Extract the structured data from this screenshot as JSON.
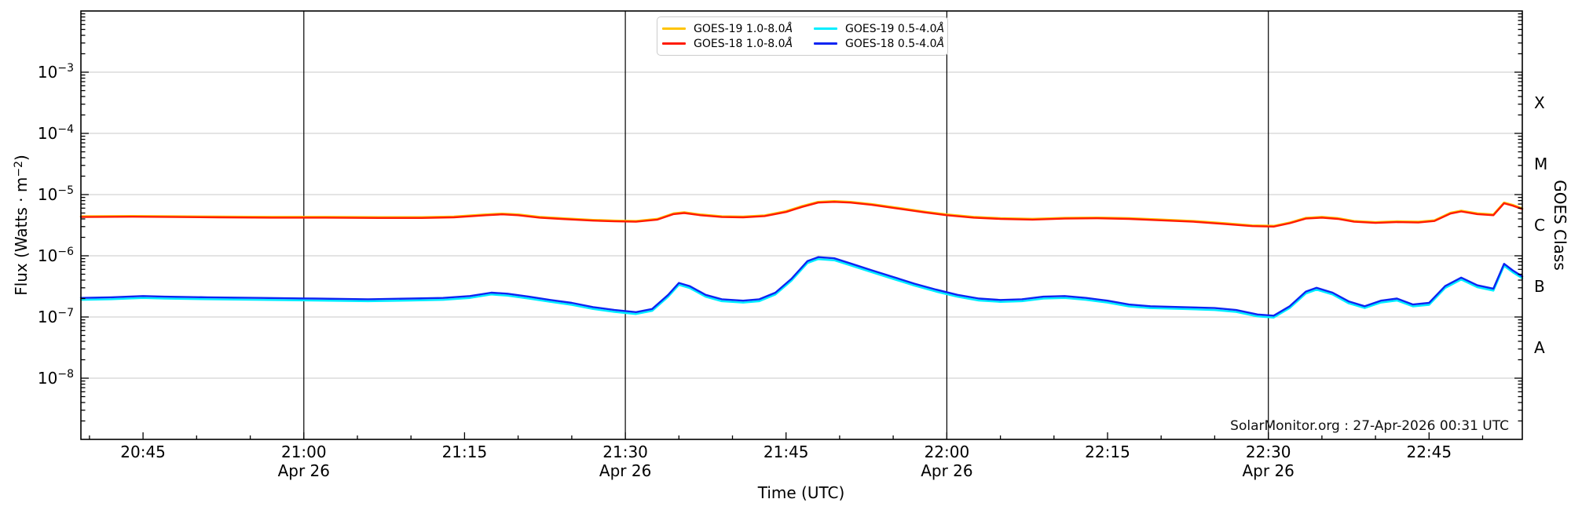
{
  "axes": {
    "y_label_prefix": "Flux (Watts · m",
    "y_label_sup": "−2",
    "y_label_suffix": ")",
    "x_label": "Time (UTC)",
    "right_label": "GOES Class"
  },
  "footer": {
    "credit": "SolarMonitor.org : 27-Apr-2026 00:31 UTC"
  },
  "legend": {
    "items": [
      {
        "id": "goes-19-long",
        "label": "GOES-19 1.0-8.0",
        "angstrom": "Å",
        "color": "#ffc400"
      },
      {
        "id": "goes-18-long",
        "label": "GOES-18 1.0-8.0",
        "angstrom": "Å",
        "color": "#ff1a00"
      },
      {
        "id": "goes-19-short",
        "label": "GOES-19 0.5-4.0",
        "angstrom": "Å",
        "color": "#00eeff"
      },
      {
        "id": "goes-18-short",
        "label": "GOES-18 0.5-4.0",
        "angstrom": "Å",
        "color": "#0d24f2"
      }
    ]
  },
  "style": {
    "grid_color": "#c8c8c8",
    "spine_color": "#000000",
    "dateline_color": "#000000",
    "text_color": "#000000"
  },
  "chart_data": {
    "type": "line",
    "title": "",
    "xlabel": "Time (UTC)",
    "ylabel": "Flux (Watts · m^-2)",
    "x_unit": "minute of day, 26-Apr-2026 UTC",
    "xlim": [
      1239.2,
      1373.7
    ],
    "ylim": [
      1e-09,
      0.01
    ],
    "yscale": "log",
    "grid": "horizontal decades",
    "legend_position": "top center",
    "x_major_ticks": [
      {
        "t": 1245,
        "label": "20:45"
      },
      {
        "t": 1260,
        "label": "21:00",
        "date": true
      },
      {
        "t": 1275,
        "label": "21:15"
      },
      {
        "t": 1290,
        "label": "21:30",
        "date": true
      },
      {
        "t": 1305,
        "label": "21:45"
      },
      {
        "t": 1320,
        "label": "22:00",
        "date": true
      },
      {
        "t": 1335,
        "label": "22:15"
      },
      {
        "t": 1350,
        "label": "22:30",
        "date": true
      },
      {
        "t": 1365,
        "label": "22:45"
      }
    ],
    "x_minor_step_min": 5,
    "date_label": "Apr 26",
    "y_labeled_exponents": [
      -3,
      -4,
      -5,
      -6,
      -7,
      -8
    ],
    "goes_classes": [
      {
        "label": "X",
        "log_center": -3.5
      },
      {
        "label": "M",
        "log_center": -4.5
      },
      {
        "label": "C",
        "log_center": -5.5
      },
      {
        "label": "B",
        "log_center": -6.5
      },
      {
        "label": "A",
        "log_center": -7.5
      }
    ],
    "series": [
      {
        "name": "GOES-19 1.0-8.0Å",
        "id": "goes-19-long",
        "color": "#ffc400",
        "width": 2.5,
        "points": [
          [
            1239.2,
            4.43e-06
          ],
          [
            1244,
            4.48e-06
          ],
          [
            1248,
            4.43e-06
          ],
          [
            1252,
            4.38e-06
          ],
          [
            1257,
            4.33e-06
          ],
          [
            1262,
            4.33e-06
          ],
          [
            1267,
            4.27e-06
          ],
          [
            1271,
            4.27e-06
          ],
          [
            1274,
            4.38e-06
          ],
          [
            1277,
            4.74e-06
          ],
          [
            1278.5,
            4.89e-06
          ],
          [
            1280,
            4.74e-06
          ],
          [
            1282,
            4.33e-06
          ],
          [
            1284,
            4.12e-06
          ],
          [
            1287,
            3.86e-06
          ],
          [
            1289,
            3.76e-06
          ],
          [
            1291,
            3.71e-06
          ],
          [
            1293,
            4.02e-06
          ],
          [
            1294.5,
            4.94e-06
          ],
          [
            1295.5,
            5.15e-06
          ],
          [
            1297,
            4.74e-06
          ],
          [
            1299,
            4.43e-06
          ],
          [
            1301,
            4.38e-06
          ],
          [
            1303,
            4.58e-06
          ],
          [
            1305,
            5.36e-06
          ],
          [
            1306.5,
            6.49e-06
          ],
          [
            1308,
            7.62e-06
          ],
          [
            1309.5,
            7.83e-06
          ],
          [
            1311,
            7.62e-06
          ],
          [
            1313,
            7e-06
          ],
          [
            1315.5,
            6.08e-06
          ],
          [
            1318,
            5.25e-06
          ],
          [
            1320,
            4.74e-06
          ],
          [
            1322.5,
            4.33e-06
          ],
          [
            1325,
            4.12e-06
          ],
          [
            1328,
            4.02e-06
          ],
          [
            1331,
            4.17e-06
          ],
          [
            1334,
            4.22e-06
          ],
          [
            1337,
            4.12e-06
          ],
          [
            1340,
            3.91e-06
          ],
          [
            1343,
            3.71e-06
          ],
          [
            1346,
            3.4e-06
          ],
          [
            1348.5,
            3.14e-06
          ],
          [
            1350.5,
            3.09e-06
          ],
          [
            1352,
            3.5e-06
          ],
          [
            1353.5,
            4.17e-06
          ],
          [
            1355,
            4.33e-06
          ],
          [
            1356.5,
            4.12e-06
          ],
          [
            1358,
            3.71e-06
          ],
          [
            1360,
            3.55e-06
          ],
          [
            1362,
            3.66e-06
          ],
          [
            1364,
            3.61e-06
          ],
          [
            1365.5,
            3.81e-06
          ],
          [
            1367,
            5.05e-06
          ],
          [
            1368,
            5.46e-06
          ],
          [
            1369.5,
            4.94e-06
          ],
          [
            1371,
            4.74e-06
          ],
          [
            1372,
            7.42e-06
          ],
          [
            1372.8,
            6.8e-06
          ],
          [
            1373.7,
            5.97e-06
          ]
        ]
      },
      {
        "name": "GOES-18 1.0-8.0Å",
        "id": "goes-18-long",
        "color": "#ff1a00",
        "width": 2.4,
        "points": [
          [
            1239.2,
            4.3e-06
          ],
          [
            1244,
            4.35e-06
          ],
          [
            1248,
            4.3e-06
          ],
          [
            1252,
            4.25e-06
          ],
          [
            1257,
            4.2e-06
          ],
          [
            1262,
            4.2e-06
          ],
          [
            1267,
            4.15e-06
          ],
          [
            1271,
            4.15e-06
          ],
          [
            1274,
            4.25e-06
          ],
          [
            1277,
            4.6e-06
          ],
          [
            1278.5,
            4.75e-06
          ],
          [
            1280,
            4.6e-06
          ],
          [
            1282,
            4.2e-06
          ],
          [
            1284,
            4e-06
          ],
          [
            1287,
            3.75e-06
          ],
          [
            1289,
            3.65e-06
          ],
          [
            1291,
            3.6e-06
          ],
          [
            1293,
            3.9e-06
          ],
          [
            1294.5,
            4.8e-06
          ],
          [
            1295.5,
            5e-06
          ],
          [
            1297,
            4.6e-06
          ],
          [
            1299,
            4.3e-06
          ],
          [
            1301,
            4.25e-06
          ],
          [
            1303,
            4.45e-06
          ],
          [
            1305,
            5.2e-06
          ],
          [
            1306.5,
            6.3e-06
          ],
          [
            1308,
            7.4e-06
          ],
          [
            1309.5,
            7.6e-06
          ],
          [
            1311,
            7.4e-06
          ],
          [
            1313,
            6.8e-06
          ],
          [
            1315.5,
            5.9e-06
          ],
          [
            1318,
            5.1e-06
          ],
          [
            1320,
            4.6e-06
          ],
          [
            1322.5,
            4.2e-06
          ],
          [
            1325,
            4e-06
          ],
          [
            1328,
            3.9e-06
          ],
          [
            1331,
            4.05e-06
          ],
          [
            1334,
            4.1e-06
          ],
          [
            1337,
            4e-06
          ],
          [
            1340,
            3.8e-06
          ],
          [
            1343,
            3.6e-06
          ],
          [
            1346,
            3.3e-06
          ],
          [
            1348.5,
            3.05e-06
          ],
          [
            1350.5,
            3e-06
          ],
          [
            1352,
            3.4e-06
          ],
          [
            1353.5,
            4.05e-06
          ],
          [
            1355,
            4.2e-06
          ],
          [
            1356.5,
            4e-06
          ],
          [
            1358,
            3.6e-06
          ],
          [
            1360,
            3.45e-06
          ],
          [
            1362,
            3.55e-06
          ],
          [
            1364,
            3.5e-06
          ],
          [
            1365.5,
            3.7e-06
          ],
          [
            1367,
            4.9e-06
          ],
          [
            1368,
            5.3e-06
          ],
          [
            1369.5,
            4.8e-06
          ],
          [
            1371,
            4.6e-06
          ],
          [
            1372,
            7.2e-06
          ],
          [
            1372.8,
            6.6e-06
          ],
          [
            1373.7,
            5.8e-06
          ]
        ]
      },
      {
        "name": "GOES-19 0.5-4.0Å",
        "id": "goes-19-short",
        "color": "#00eeff",
        "width": 2.5,
        "points": [
          [
            1239.2,
            1.91e-07
          ],
          [
            1242,
            1.95e-07
          ],
          [
            1245,
            2.05e-07
          ],
          [
            1247,
            2e-07
          ],
          [
            1251,
            1.95e-07
          ],
          [
            1256,
            1.91e-07
          ],
          [
            1261,
            1.86e-07
          ],
          [
            1266,
            1.81e-07
          ],
          [
            1270,
            1.86e-07
          ],
          [
            1273,
            1.91e-07
          ],
          [
            1275.5,
            2.05e-07
          ],
          [
            1277.5,
            2.33e-07
          ],
          [
            1279,
            2.23e-07
          ],
          [
            1281,
            2e-07
          ],
          [
            1283,
            1.77e-07
          ],
          [
            1285,
            1.58e-07
          ],
          [
            1287,
            1.35e-07
          ],
          [
            1289,
            1.21e-07
          ],
          [
            1291,
            1.12e-07
          ],
          [
            1292.5,
            1.26e-07
          ],
          [
            1294,
            2.14e-07
          ],
          [
            1295,
            3.35e-07
          ],
          [
            1296,
            2.98e-07
          ],
          [
            1297.5,
            2.14e-07
          ],
          [
            1299,
            1.81e-07
          ],
          [
            1301,
            1.72e-07
          ],
          [
            1302.5,
            1.81e-07
          ],
          [
            1304,
            2.33e-07
          ],
          [
            1305.5,
            3.91e-07
          ],
          [
            1307,
            7.63e-07
          ],
          [
            1308,
            8.84e-07
          ],
          [
            1309.5,
            8.46e-07
          ],
          [
            1311,
            6.98e-07
          ],
          [
            1313,
            5.39e-07
          ],
          [
            1315,
            4.19e-07
          ],
          [
            1317,
            3.26e-07
          ],
          [
            1319,
            2.6e-07
          ],
          [
            1321,
            2.14e-07
          ],
          [
            1323,
            1.86e-07
          ],
          [
            1325,
            1.77e-07
          ],
          [
            1327,
            1.81e-07
          ],
          [
            1329,
            2e-07
          ],
          [
            1331,
            2.05e-07
          ],
          [
            1333,
            1.91e-07
          ],
          [
            1335,
            1.72e-07
          ],
          [
            1337,
            1.49e-07
          ],
          [
            1339,
            1.4e-07
          ],
          [
            1342,
            1.35e-07
          ],
          [
            1345,
            1.3e-07
          ],
          [
            1347,
            1.21e-07
          ],
          [
            1349,
            1.02e-07
          ],
          [
            1350.5,
            9.8e-08
          ],
          [
            1352,
            1.4e-07
          ],
          [
            1353.5,
            2.42e-07
          ],
          [
            1354.5,
            2.79e-07
          ],
          [
            1356,
            2.33e-07
          ],
          [
            1357.5,
            1.67e-07
          ],
          [
            1359,
            1.4e-07
          ],
          [
            1360.5,
            1.72e-07
          ],
          [
            1362,
            1.86e-07
          ],
          [
            1363.5,
            1.49e-07
          ],
          [
            1365,
            1.58e-07
          ],
          [
            1366.5,
            2.98e-07
          ],
          [
            1368,
            4.09e-07
          ],
          [
            1369.5,
            3.07e-07
          ],
          [
            1371,
            2.7e-07
          ],
          [
            1372,
            6.88e-07
          ],
          [
            1372.8,
            5.39e-07
          ],
          [
            1373.7,
            4.28e-07
          ]
        ]
      },
      {
        "name": "GOES-18 0.5-4.0Å",
        "id": "goes-18-short",
        "color": "#0d24f2",
        "width": 2.4,
        "points": [
          [
            1239.2,
            2.05e-07
          ],
          [
            1242,
            2.1e-07
          ],
          [
            1245,
            2.2e-07
          ],
          [
            1247,
            2.15e-07
          ],
          [
            1251,
            2.1e-07
          ],
          [
            1256,
            2.05e-07
          ],
          [
            1261,
            2e-07
          ],
          [
            1266,
            1.95e-07
          ],
          [
            1270,
            2e-07
          ],
          [
            1273,
            2.05e-07
          ],
          [
            1275.5,
            2.2e-07
          ],
          [
            1277.5,
            2.5e-07
          ],
          [
            1279,
            2.4e-07
          ],
          [
            1281,
            2.15e-07
          ],
          [
            1283,
            1.9e-07
          ],
          [
            1285,
            1.7e-07
          ],
          [
            1287,
            1.45e-07
          ],
          [
            1289,
            1.3e-07
          ],
          [
            1291,
            1.2e-07
          ],
          [
            1292.5,
            1.35e-07
          ],
          [
            1294,
            2.3e-07
          ],
          [
            1295,
            3.6e-07
          ],
          [
            1296,
            3.2e-07
          ],
          [
            1297.5,
            2.3e-07
          ],
          [
            1299,
            1.95e-07
          ],
          [
            1301,
            1.85e-07
          ],
          [
            1302.5,
            1.95e-07
          ],
          [
            1304,
            2.5e-07
          ],
          [
            1305.5,
            4.2e-07
          ],
          [
            1307,
            8.2e-07
          ],
          [
            1308,
            9.5e-07
          ],
          [
            1309.5,
            9.1e-07
          ],
          [
            1311,
            7.5e-07
          ],
          [
            1313,
            5.8e-07
          ],
          [
            1315,
            4.5e-07
          ],
          [
            1317,
            3.5e-07
          ],
          [
            1319,
            2.8e-07
          ],
          [
            1321,
            2.3e-07
          ],
          [
            1323,
            2e-07
          ],
          [
            1325,
            1.9e-07
          ],
          [
            1327,
            1.95e-07
          ],
          [
            1329,
            2.15e-07
          ],
          [
            1331,
            2.2e-07
          ],
          [
            1333,
            2.05e-07
          ],
          [
            1335,
            1.85e-07
          ],
          [
            1337,
            1.6e-07
          ],
          [
            1339,
            1.5e-07
          ],
          [
            1342,
            1.45e-07
          ],
          [
            1345,
            1.4e-07
          ],
          [
            1347,
            1.3e-07
          ],
          [
            1349,
            1.1e-07
          ],
          [
            1350.5,
            1.05e-07
          ],
          [
            1352,
            1.5e-07
          ],
          [
            1353.5,
            2.6e-07
          ],
          [
            1354.5,
            3e-07
          ],
          [
            1356,
            2.5e-07
          ],
          [
            1357.5,
            1.8e-07
          ],
          [
            1359,
            1.5e-07
          ],
          [
            1360.5,
            1.85e-07
          ],
          [
            1362,
            2e-07
          ],
          [
            1363.5,
            1.6e-07
          ],
          [
            1365,
            1.7e-07
          ],
          [
            1366.5,
            3.2e-07
          ],
          [
            1368,
            4.4e-07
          ],
          [
            1369.5,
            3.3e-07
          ],
          [
            1371,
            2.9e-07
          ],
          [
            1372,
            7.4e-07
          ],
          [
            1372.8,
            5.8e-07
          ],
          [
            1373.7,
            4.6e-07
          ]
        ]
      }
    ]
  }
}
